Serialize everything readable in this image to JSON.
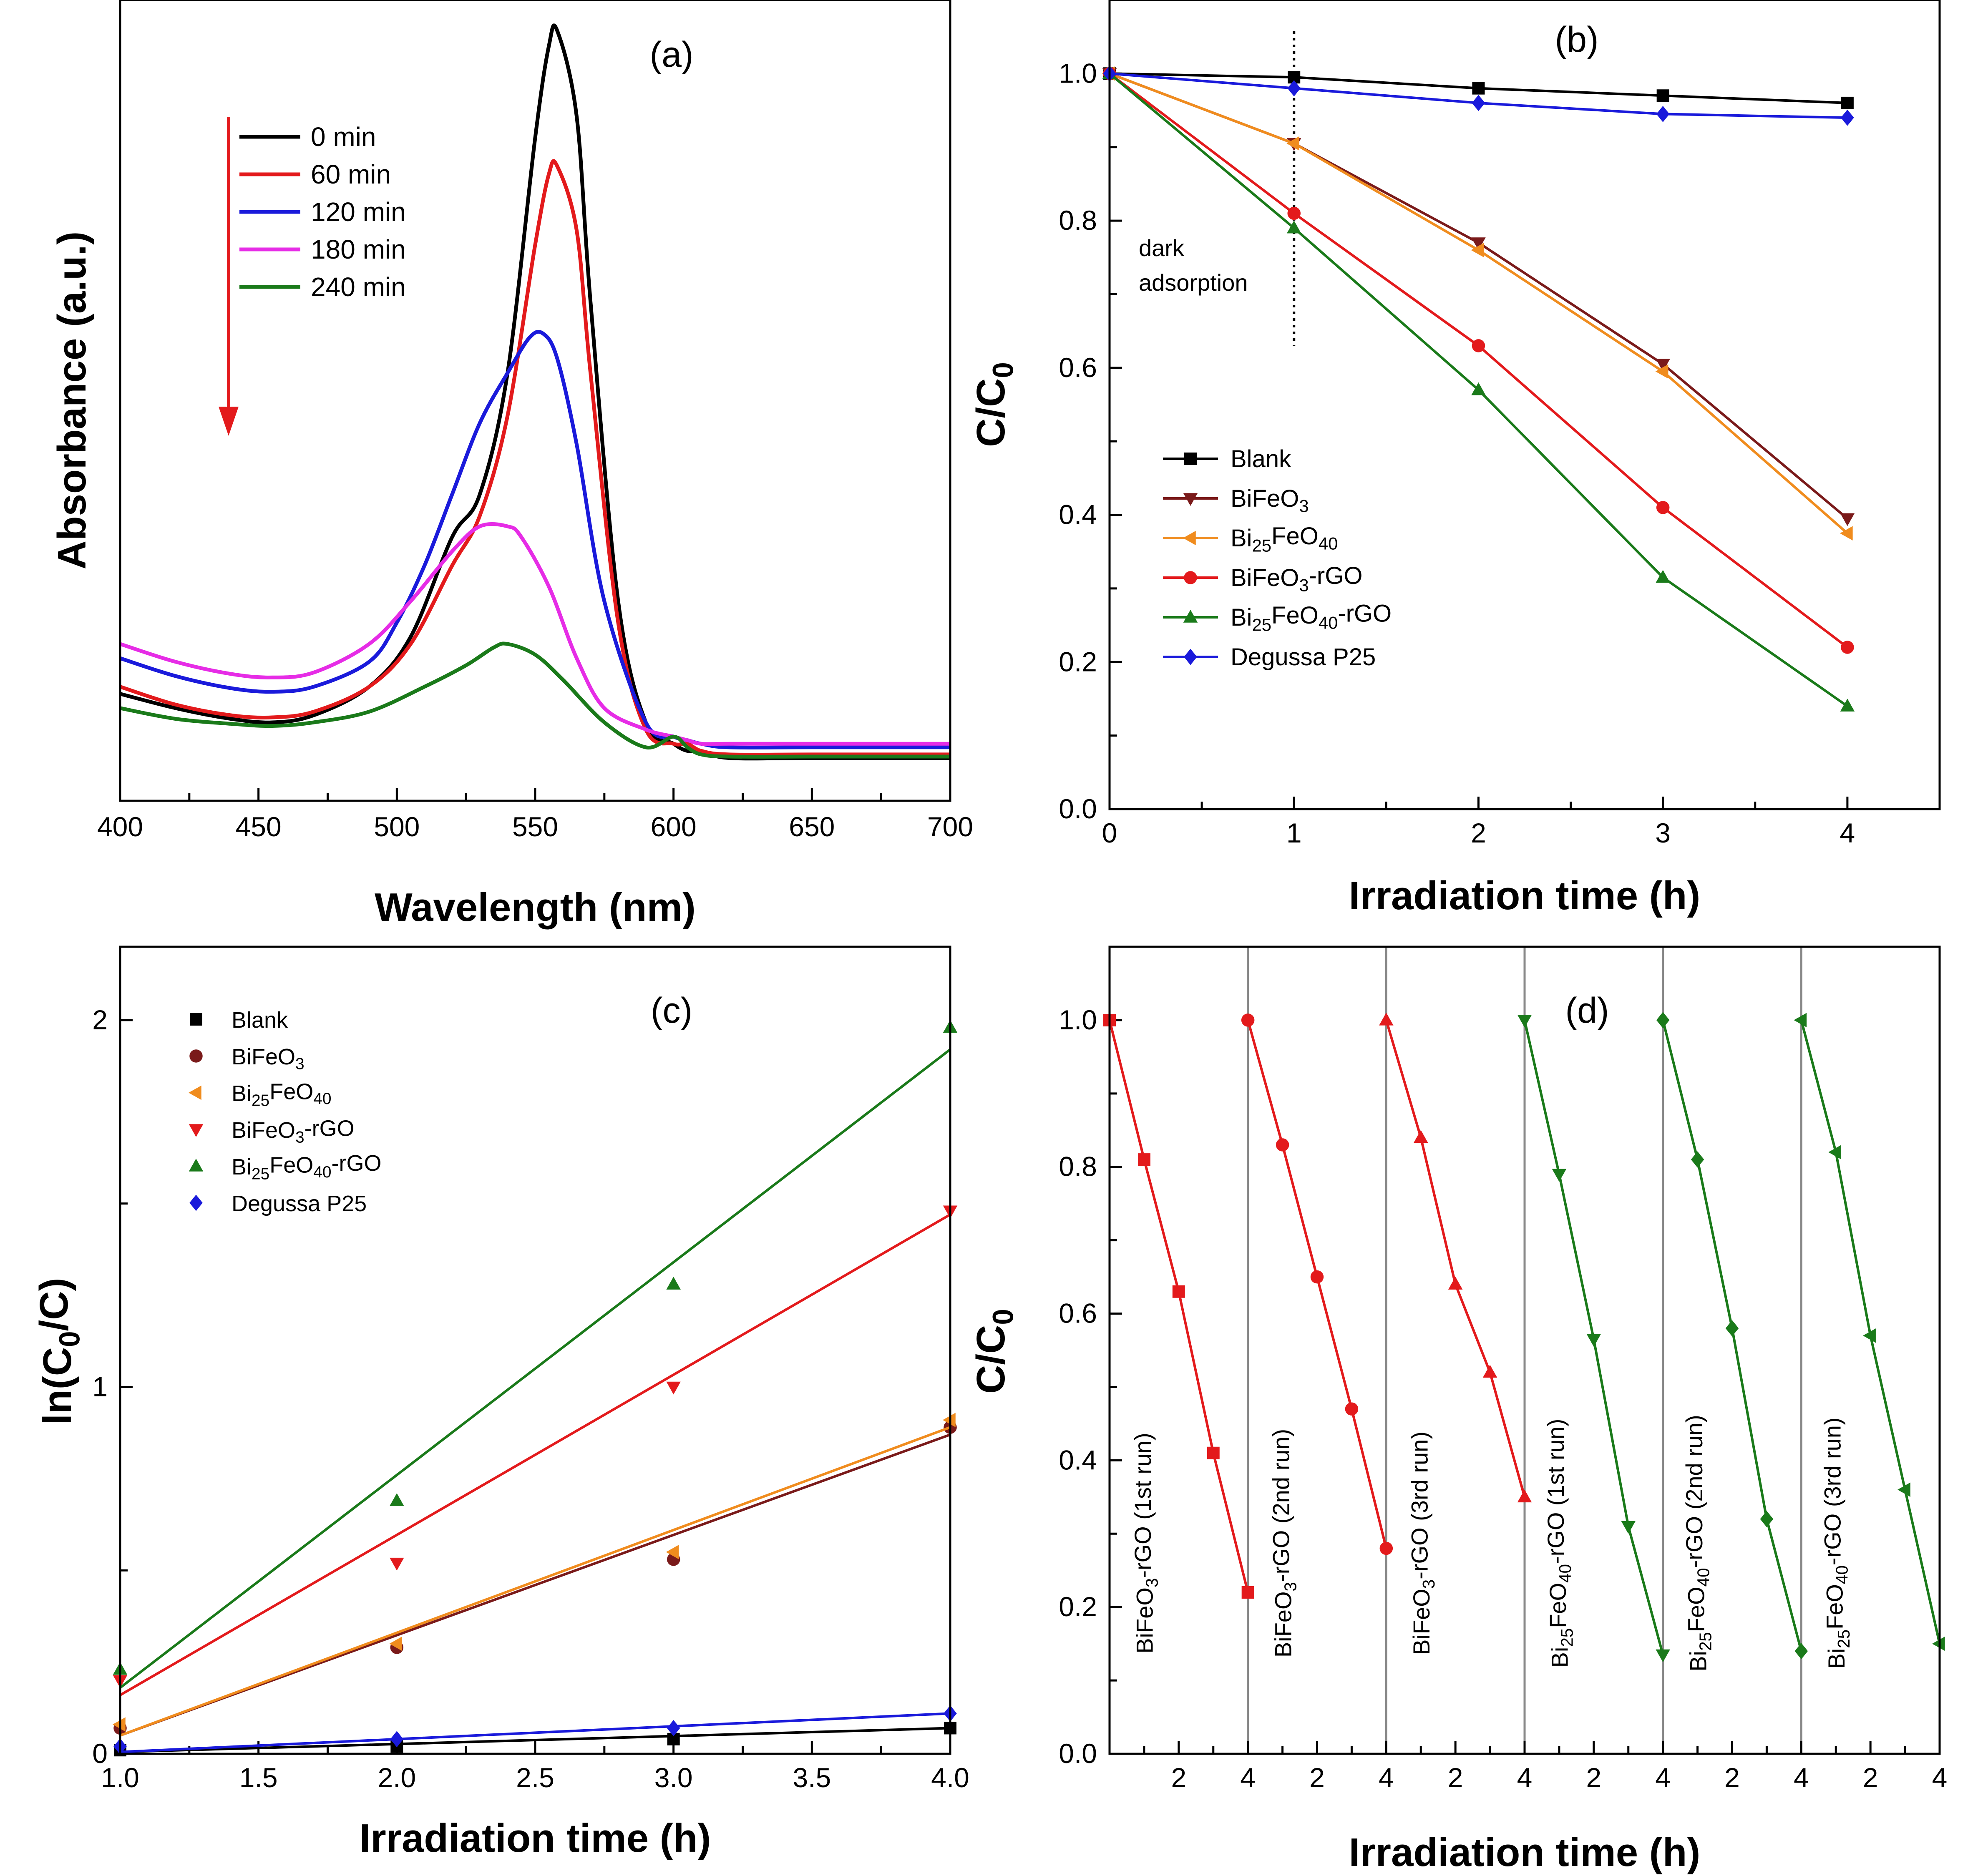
{
  "chart_data": [
    {
      "panel": "(a)",
      "type": "line",
      "xlabel": "Wavelength (nm)",
      "ylabel": "Absorbance (a.u.)",
      "xlim": [
        400,
        700
      ],
      "xticks": [
        "400",
        "450",
        "500",
        "550",
        "600",
        "650",
        "700"
      ],
      "ylim": [
        0,
        1.1
      ],
      "legend": "top-left",
      "trend_arrow": "decreasing with irradiation time",
      "series": [
        {
          "name": "0 min",
          "color": "#000000",
          "x": [
            400,
            420,
            440,
            455,
            470,
            490,
            505,
            520,
            530,
            540,
            550,
            555,
            558,
            565,
            570,
            580,
            590,
            600,
            605,
            610,
            620,
            650,
            700
          ],
          "y": [
            0.15,
            0.13,
            0.115,
            0.11,
            0.12,
            0.16,
            0.23,
            0.37,
            0.43,
            0.6,
            0.93,
            1.06,
            1.08,
            0.96,
            0.7,
            0.28,
            0.11,
            0.08,
            0.07,
            0.07,
            0.06,
            0.06,
            0.06
          ]
        },
        {
          "name": "60 min",
          "color": "#e31a1c",
          "x": [
            400,
            420,
            440,
            455,
            470,
            490,
            505,
            520,
            530,
            540,
            550,
            555,
            558,
            565,
            570,
            580,
            590,
            600,
            605,
            610,
            620,
            650,
            700
          ],
          "y": [
            0.16,
            0.135,
            0.12,
            0.117,
            0.125,
            0.16,
            0.22,
            0.33,
            0.4,
            0.54,
            0.78,
            0.88,
            0.89,
            0.8,
            0.6,
            0.25,
            0.1,
            0.08,
            0.08,
            0.07,
            0.065,
            0.065,
            0.065
          ]
        },
        {
          "name": "120 min",
          "color": "#1a1adb",
          "x": [
            400,
            420,
            440,
            455,
            470,
            490,
            500,
            510,
            520,
            530,
            540,
            548,
            553,
            558,
            565,
            575,
            590,
            600,
            605,
            610,
            620,
            650,
            700
          ],
          "y": [
            0.2,
            0.175,
            0.158,
            0.153,
            0.16,
            0.195,
            0.25,
            0.33,
            0.43,
            0.53,
            0.6,
            0.65,
            0.655,
            0.62,
            0.5,
            0.28,
            0.11,
            0.09,
            0.085,
            0.08,
            0.075,
            0.075,
            0.075
          ]
        },
        {
          "name": "180 min",
          "color": "#e62ce6",
          "x": [
            400,
            420,
            440,
            455,
            470,
            490,
            505,
            520,
            530,
            540,
            545,
            555,
            565,
            575,
            590,
            600,
            605,
            610,
            620,
            650,
            700
          ],
          "y": [
            0.22,
            0.195,
            0.178,
            0.173,
            0.18,
            0.22,
            0.28,
            0.35,
            0.385,
            0.385,
            0.37,
            0.3,
            0.2,
            0.13,
            0.1,
            0.09,
            0.085,
            0.08,
            0.08,
            0.08,
            0.08
          ]
        },
        {
          "name": "240 min",
          "color": "#1a7a1a",
          "x": [
            400,
            420,
            440,
            455,
            470,
            490,
            510,
            525,
            535,
            540,
            550,
            560,
            575,
            590,
            600,
            605,
            610,
            620,
            650,
            700
          ],
          "y": [
            0.13,
            0.115,
            0.108,
            0.105,
            0.11,
            0.125,
            0.16,
            0.19,
            0.215,
            0.22,
            0.205,
            0.17,
            0.11,
            0.075,
            0.09,
            0.075,
            0.065,
            0.062,
            0.062,
            0.062
          ]
        }
      ]
    },
    {
      "panel": "(b)",
      "type": "line",
      "xlabel": "Irradiation time (h)",
      "ylabel": "C/C0",
      "xlim": [
        0,
        4.5
      ],
      "ylim": [
        0,
        1.1
      ],
      "xticks": [
        "0",
        "1",
        "2",
        "3",
        "4"
      ],
      "yticks": [
        "0.0",
        "0.2",
        "0.4",
        "0.6",
        "0.8",
        "1.0"
      ],
      "annotation": {
        "line1": "dark",
        "line2": "adsorption",
        "at_x": 1
      },
      "legend": "middle-left",
      "series": [
        {
          "name": "Blank",
          "color": "#000000",
          "marker": "square",
          "x": [
            0,
            1,
            2,
            3,
            4
          ],
          "y": [
            1.0,
            0.995,
            0.98,
            0.97,
            0.96
          ]
        },
        {
          "name": "BiFeO3",
          "color": "#7a1a1a",
          "marker": "triangle-down",
          "x": [
            0,
            1,
            2,
            3,
            4
          ],
          "y": [
            1.0,
            0.905,
            0.77,
            0.605,
            0.395
          ]
        },
        {
          "name": "Bi25FeO40",
          "color": "#f08c1e",
          "marker": "triangle-left",
          "x": [
            0,
            1,
            2,
            3,
            4
          ],
          "y": [
            1.0,
            0.905,
            0.76,
            0.595,
            0.375
          ]
        },
        {
          "name": "BiFeO3-rGO",
          "color": "#e31a1c",
          "marker": "circle",
          "x": [
            0,
            1,
            2,
            3,
            4
          ],
          "y": [
            1.0,
            0.81,
            0.63,
            0.41,
            0.22
          ]
        },
        {
          "name": "Bi25FeO40-rGO",
          "color": "#1a7a1a",
          "marker": "triangle-up",
          "x": [
            0,
            1,
            2,
            3,
            4
          ],
          "y": [
            1.0,
            0.79,
            0.57,
            0.315,
            0.14
          ]
        },
        {
          "name": "Degussa P25",
          "color": "#1a1adb",
          "marker": "diamond",
          "x": [
            0,
            1,
            2,
            3,
            4
          ],
          "y": [
            1.0,
            0.98,
            0.96,
            0.945,
            0.94
          ]
        }
      ]
    },
    {
      "panel": "(c)",
      "type": "scatter",
      "xlabel": "Irradiation time (h)",
      "ylabel": "ln(C0/C)",
      "xlim": [
        1.0,
        4.0
      ],
      "ylim": [
        0,
        2.2
      ],
      "xticks": [
        "1.0",
        "1.5",
        "2.0",
        "2.5",
        "3.0",
        "3.5",
        "4.0"
      ],
      "yticks": [
        "0",
        "1",
        "2"
      ],
      "legend": "top-left",
      "series": [
        {
          "name": "Blank",
          "color": "#000000",
          "marker": "square",
          "x": [
            1,
            2,
            3,
            4
          ],
          "y": [
            0.01,
            0.02,
            0.04,
            0.07
          ],
          "fit": [
            0.005,
            0.07
          ]
        },
        {
          "name": "BiFeO3",
          "color": "#7a1a1a",
          "marker": "circle",
          "x": [
            1,
            2,
            3,
            4
          ],
          "y": [
            0.07,
            0.29,
            0.53,
            0.89
          ],
          "fit": [
            0.05,
            0.87
          ]
        },
        {
          "name": "Bi25FeO40",
          "color": "#f08c1e",
          "marker": "triangle-left",
          "x": [
            1,
            2,
            3,
            4
          ],
          "y": [
            0.08,
            0.3,
            0.55,
            0.91
          ],
          "fit": [
            0.05,
            0.89
          ]
        },
        {
          "name": "BiFeO3-rGO",
          "color": "#e31a1c",
          "marker": "triangle-down",
          "x": [
            1,
            2,
            3,
            4
          ],
          "y": [
            0.2,
            0.52,
            1.0,
            1.48
          ],
          "fit": [
            0.16,
            1.47
          ]
        },
        {
          "name": "Bi25FeO40-rGO",
          "color": "#1a7a1a",
          "marker": "triangle-up",
          "x": [
            1,
            2,
            3,
            4
          ],
          "y": [
            0.23,
            0.69,
            1.28,
            1.98
          ],
          "fit": [
            0.18,
            1.92
          ]
        },
        {
          "name": "Degussa P25",
          "color": "#1a1adb",
          "marker": "diamond",
          "x": [
            1,
            2,
            3,
            4
          ],
          "y": [
            0.02,
            0.04,
            0.07,
            0.11
          ],
          "fit": [
            0.005,
            0.11
          ]
        }
      ]
    },
    {
      "panel": "(d)",
      "type": "line",
      "xlabel": "Irradiation time (h)",
      "ylabel": "C/C0",
      "xlim": [
        0,
        24
      ],
      "ylim": [
        0,
        1.1
      ],
      "xticks": [
        "2",
        "4",
        "2",
        "4",
        "2",
        "4",
        "2",
        "4",
        "2",
        "4",
        "2",
        "4"
      ],
      "yticks": [
        "0.0",
        "0.2",
        "0.4",
        "0.6",
        "0.8",
        "1.0"
      ],
      "run_separators": [
        4,
        8,
        12,
        16,
        20
      ],
      "series": [
        {
          "name": "BiFeO3-rGO (1st run)",
          "color": "#e31a1c",
          "marker": "square",
          "x": [
            0,
            1,
            2,
            3,
            4
          ],
          "y": [
            1.0,
            0.81,
            0.63,
            0.41,
            0.22
          ]
        },
        {
          "name": "BiFeO3-rGO (2nd run)",
          "color": "#e31a1c",
          "marker": "circle",
          "x": [
            4,
            5,
            6,
            7,
            8
          ],
          "y": [
            1.0,
            0.83,
            0.65,
            0.47,
            0.28
          ]
        },
        {
          "name": "BiFeO3-rGO (3rd run)",
          "color": "#e31a1c",
          "marker": "triangle-up",
          "x": [
            8,
            9,
            10,
            11,
            12
          ],
          "y": [
            1.0,
            0.84,
            0.64,
            0.52,
            0.35
          ]
        },
        {
          "name": "Bi25FeO40-rGO (1st run)",
          "color": "#1a7a1a",
          "marker": "triangle-down",
          "x": [
            12,
            13,
            14,
            15,
            16
          ],
          "y": [
            1.0,
            0.79,
            0.565,
            0.31,
            0.135
          ]
        },
        {
          "name": "Bi25FeO40-rGO (2nd run)",
          "color": "#1a7a1a",
          "marker": "diamond",
          "x": [
            16,
            17,
            18,
            19,
            20
          ],
          "y": [
            1.0,
            0.81,
            0.58,
            0.32,
            0.14
          ]
        },
        {
          "name": "Bi25FeO40-rGO (3rd run)",
          "color": "#1a7a1a",
          "marker": "triangle-left",
          "x": [
            20,
            21,
            22,
            23,
            24
          ],
          "y": [
            1.0,
            0.82,
            0.57,
            0.36,
            0.15
          ]
        }
      ]
    }
  ]
}
